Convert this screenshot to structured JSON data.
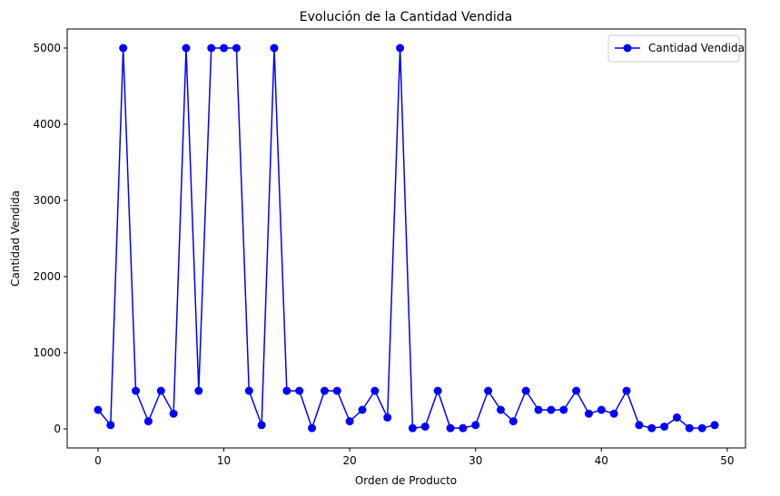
{
  "chart_data": {
    "type": "line",
    "title": "Evolución de la Cantidad Vendida",
    "xlabel": "Orden de Producto",
    "ylabel": "Cantidad Vendida",
    "xlim": [
      -2.45,
      51.45
    ],
    "ylim": [
      -250,
      5250
    ],
    "xticks": [
      0,
      10,
      20,
      30,
      40,
      50
    ],
    "yticks": [
      0,
      1000,
      2000,
      3000,
      4000,
      5000
    ],
    "grid": false,
    "legend_position": "upper right",
    "colors": {
      "series": "#0000ff"
    },
    "series": [
      {
        "name": "Cantidad Vendida",
        "marker": "circle",
        "x": [
          0,
          1,
          2,
          3,
          4,
          5,
          6,
          7,
          8,
          9,
          10,
          11,
          12,
          13,
          14,
          15,
          16,
          17,
          18,
          19,
          20,
          21,
          22,
          23,
          24,
          25,
          26,
          27,
          28,
          29,
          30,
          31,
          32,
          33,
          34,
          35,
          36,
          37,
          38,
          39,
          40,
          41,
          42,
          43,
          44,
          45,
          46,
          47,
          48,
          49
        ],
        "values": [
          250,
          50,
          5000,
          500,
          100,
          500,
          200,
          5000,
          500,
          5000,
          5000,
          5000,
          500,
          50,
          5000,
          500,
          500,
          10,
          500,
          500,
          100,
          250,
          500,
          150,
          5000,
          10,
          30,
          500,
          10,
          10,
          50,
          500,
          250,
          100,
          500,
          250,
          250,
          250,
          500,
          200,
          250,
          200,
          500,
          50,
          10,
          30,
          150,
          10,
          10,
          50
        ]
      }
    ]
  }
}
